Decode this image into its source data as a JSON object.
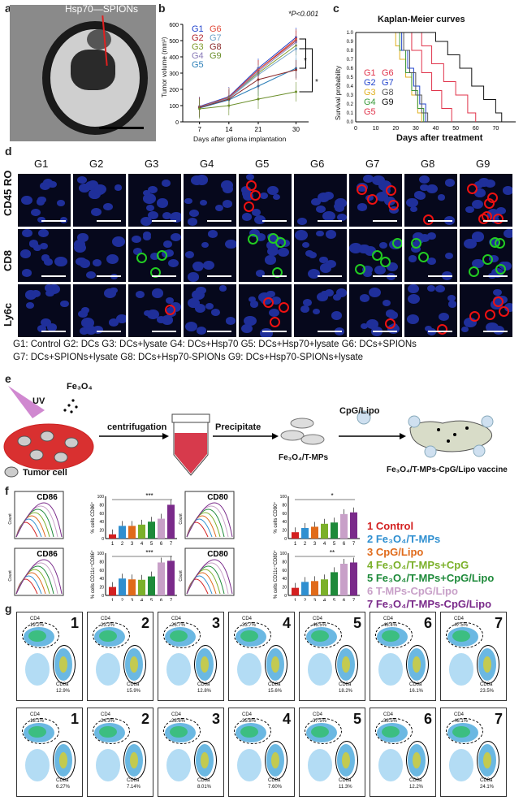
{
  "panel_labels": {
    "a": "a",
    "b": "b",
    "c": "c",
    "d": "d",
    "e": "e",
    "f": "f",
    "g": "g"
  },
  "panel_a": {
    "label": "Hsp70—SPIONs"
  },
  "panel_b": {
    "annotation": "*P<0.001",
    "ylabel": "Tumor volume (mm³)",
    "xlabel": "Days after glioma implantation",
    "groups": [
      {
        "name": "G1",
        "color": "#2244cc"
      },
      {
        "name": "G6",
        "color": "#e04a3a"
      },
      {
        "name": "G2",
        "color": "#b0232a"
      },
      {
        "name": "G7",
        "color": "#6fa3c8"
      },
      {
        "name": "G3",
        "color": "#7f9b2a"
      },
      {
        "name": "G8",
        "color": "#8b2a2a"
      },
      {
        "name": "G4",
        "color": "#8a7bb8"
      },
      {
        "name": "G9",
        "color": "#6b8f2b"
      },
      {
        "name": "G5",
        "color": "#2c7fb8"
      }
    ],
    "star1": "*",
    "star2": "*"
  },
  "panel_c": {
    "title": "Kaplan-Meier curves",
    "ylabel": "Survival probability",
    "xlabel": "Days after treatment",
    "legend": [
      {
        "name": "G1",
        "color": "#e0334a"
      },
      {
        "name": "G6",
        "color": "#e0334a"
      },
      {
        "name": "G2",
        "color": "#2244cc"
      },
      {
        "name": "G7",
        "color": "#2244cc"
      },
      {
        "name": "G3",
        "color": "#e0b020"
      },
      {
        "name": "G8",
        "color": "#555555"
      },
      {
        "name": "G4",
        "color": "#3a9a3a"
      },
      {
        "name": "G9",
        "color": "#111111"
      },
      {
        "name": "G5",
        "color": "#e0334a"
      }
    ]
  },
  "panel_d": {
    "columns": [
      "G1",
      "G2",
      "G3",
      "G4",
      "G5",
      "G6",
      "G7",
      "G8",
      "G9"
    ],
    "rows": [
      "CD45 RO",
      "CD8",
      "Ly6c"
    ],
    "caption_line1": "G1: Control   G2: DCs  G3: DCs+lysate   G4: DCs+Hsp70   G5: DCs+Hsp70+lysate  G6: DCs+SPIONs",
    "caption_line2": "G7: DCs+SPIONs+lysate      G8: DCs+Hsp70-SPIONs      G9: DCs+Hsp70-SPIONs+lysate"
  },
  "panel_e": {
    "uv": "UV",
    "fe3o4": "Fe₃O₄",
    "centrifugation": "centrifugation",
    "precipitate": "Precipitate",
    "cpg": "CpG/Lipo",
    "tumor_cell": "Tumor cell",
    "tmps": "Fe₃O₄/T-MPs",
    "vaccine": "Fe₃O₄/T-MPs-CpG/Lipo vaccine"
  },
  "panel_f": {
    "hist_labels": [
      "CD86",
      "CD80",
      "CD86",
      "CD80"
    ],
    "ylabels": [
      "% cells CD86⁺",
      "% cells CD80⁺",
      "% cells CD11c⁺CD86⁺",
      "% cells CD11c⁺CD80⁺"
    ],
    "count_label": "Count",
    "sig": [
      "***",
      "***",
      "*",
      "***",
      "**"
    ],
    "legend": [
      {
        "text": "1 Control",
        "color": "#d32020"
      },
      {
        "text": "2 Fe₃O₄/T-MPs",
        "color": "#2f8fd0"
      },
      {
        "text": "3 CpG/Lipo",
        "color": "#e06a1a"
      },
      {
        "text": "4 Fe₃O₄/T-MPs+CpG",
        "color": "#7bb02a"
      },
      {
        "text": "5 Fe₃O₄/T-MPs+CpG/Lipo",
        "color": "#1e8a3a"
      },
      {
        "text": "6 T-MPs-CpG/Lipo",
        "color": "#c8a0c8"
      },
      {
        "text": "7 Fe₃O₄/T-MPs-CpG/Lipo",
        "color": "#7a2a8a"
      }
    ]
  },
  "chart_data": [
    {
      "type": "line",
      "title": "",
      "xlabel": "Days after glioma implantation",
      "ylabel": "Tumor volume (mm³)",
      "x": [
        7,
        14,
        21,
        30
      ],
      "ylim": [
        0,
        600
      ],
      "series": [
        {
          "name": "G1",
          "values": [
            95,
            155,
            330,
            520
          ]
        },
        {
          "name": "G2",
          "values": [
            92,
            150,
            320,
            500
          ]
        },
        {
          "name": "G3",
          "values": [
            90,
            150,
            300,
            470
          ]
        },
        {
          "name": "G4",
          "values": [
            90,
            145,
            310,
            490
          ]
        },
        {
          "name": "G5",
          "values": [
            85,
            135,
            220,
            330
          ]
        },
        {
          "name": "G6",
          "values": [
            92,
            150,
            320,
            510
          ]
        },
        {
          "name": "G7",
          "values": [
            90,
            145,
            290,
            450
          ]
        },
        {
          "name": "G8",
          "values": [
            88,
            140,
            260,
            320
          ]
        },
        {
          "name": "G9",
          "values": [
            80,
            100,
            140,
            185
          ]
        }
      ]
    },
    {
      "type": "line",
      "title": "Kaplan-Meier curves",
      "xlabel": "Days after treatment",
      "ylabel": "Survival probability",
      "xlim": [
        0,
        80
      ],
      "ylim": [
        0,
        1.0
      ],
      "x": [
        0,
        10,
        20,
        30,
        40,
        50,
        60,
        70,
        80
      ],
      "yticks": [
        0,
        0.1,
        0.2,
        0.3,
        0.4,
        0.5,
        0.6,
        0.7,
        0.8,
        0.9,
        1.0
      ],
      "series": [
        {
          "name": "G1",
          "values": [
            1.0,
            1.0,
            0.9,
            0.2,
            0.0,
            0.0,
            0.0,
            0.0,
            0.0
          ]
        },
        {
          "name": "G9",
          "values": [
            1.0,
            1.0,
            1.0,
            0.95,
            0.85,
            0.6,
            0.35,
            0.1,
            0.0
          ]
        },
        {
          "name": "G5",
          "values": [
            1.0,
            1.0,
            0.95,
            0.8,
            0.5,
            0.15,
            0.0,
            0.0,
            0.0
          ]
        }
      ]
    },
    {
      "type": "bar",
      "title": "",
      "ylabel": "% cells CD86⁺",
      "categories": [
        "1",
        "2",
        "3",
        "4",
        "5",
        "6",
        "7"
      ],
      "values": [
        10,
        30,
        30,
        33,
        40,
        47,
        80
      ],
      "ylim": [
        0,
        100
      ]
    },
    {
      "type": "bar",
      "title": "",
      "ylabel": "% cells CD80⁺",
      "categories": [
        "1",
        "2",
        "3",
        "4",
        "5",
        "6",
        "7"
      ],
      "values": [
        15,
        25,
        28,
        35,
        38,
        58,
        62
      ],
      "ylim": [
        0,
        100
      ]
    },
    {
      "type": "bar",
      "title": "",
      "ylabel": "% cells CD11c⁺CD86⁺",
      "categories": [
        "1",
        "2",
        "3",
        "4",
        "5",
        "6",
        "7"
      ],
      "values": [
        20,
        40,
        38,
        37,
        45,
        78,
        82
      ],
      "ylim": [
        0,
        100
      ]
    },
    {
      "type": "bar",
      "title": "",
      "ylabel": "% cells CD11c⁺CD80⁺",
      "categories": [
        "1",
        "2",
        "3",
        "4",
        "5",
        "6",
        "7"
      ],
      "values": [
        18,
        32,
        34,
        38,
        55,
        75,
        78
      ],
      "ylim": [
        0,
        100
      ]
    }
  ],
  "panel_g": {
    "row1": [
      {
        "n": "1",
        "cd4": "19.2%",
        "cd8": "12.9%"
      },
      {
        "n": "2",
        "cd4": "23.2%",
        "cd8": "15.9%"
      },
      {
        "n": "3",
        "cd4": "26.7%",
        "cd8": "12.8%"
      },
      {
        "n": "4",
        "cd4": "33.7%",
        "cd8": "15.6%"
      },
      {
        "n": "5",
        "cd4": "46.5%",
        "cd8": "18.2%"
      },
      {
        "n": "6",
        "cd4": "46.4%",
        "cd8": "16.1%"
      },
      {
        "n": "7",
        "cd4": "47.5%",
        "cd8": "23.5%"
      }
    ],
    "row2": [
      {
        "n": "1",
        "cd4": "18.1%",
        "cd8": "6.27%"
      },
      {
        "n": "2",
        "cd4": "24.3%",
        "cd8": "7.14%"
      },
      {
        "n": "3",
        "cd4": "28.6%",
        "cd8": "8.01%"
      },
      {
        "n": "4",
        "cd4": "35.8%",
        "cd8": "7.60%"
      },
      {
        "n": "5",
        "cd4": "37.5%",
        "cd8": "11.3%"
      },
      {
        "n": "6",
        "cd4": "38.5%",
        "cd8": "12.2%"
      },
      {
        "n": "7",
        "cd4": "46.1%",
        "cd8": "24.1%"
      }
    ],
    "cd4_label": "CD4",
    "cd8_label": "CD8a"
  }
}
